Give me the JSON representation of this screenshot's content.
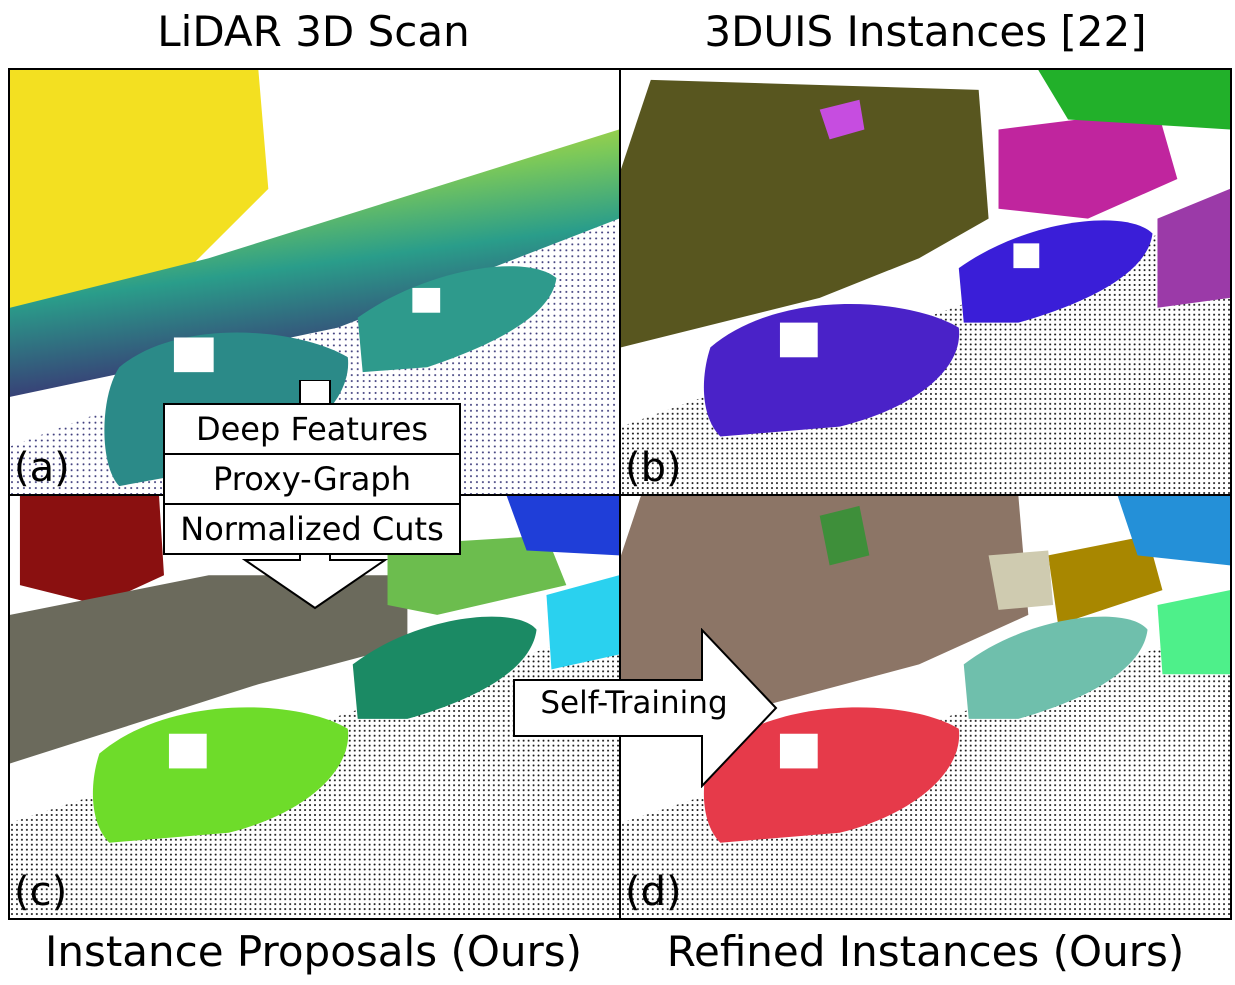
{
  "titles": {
    "a": "LiDAR 3D Scan",
    "b": "3DUIS Instances [22]",
    "c": "Instance Proposals (Ours)",
    "d": "Refined Instances (Ours)"
  },
  "panel_labels": {
    "a": "(a)",
    "b": "(b)",
    "c": "(c)",
    "d": "(d)"
  },
  "pipeline": {
    "steps": [
      "Deep Features",
      "Proxy-Graph",
      "Normalized Cuts"
    ]
  },
  "self_training": {
    "label": "Self-Training"
  },
  "colors": {
    "scan_near": "#3b2a72",
    "scan_mid": "#2a9d8a",
    "scan_far": "#f5e61e",
    "ground_points": "#111111",
    "b_building": "#58561f",
    "b_car": "#4a22c8",
    "b_car2": "#c0259e",
    "c_building": "#6b6a5c",
    "c_car_near": "#6edc2a",
    "c_car_mid": "#1b8a64",
    "c_far": "#8a1010",
    "d_building": "#8c7566",
    "d_car_near": "#e63a4a",
    "d_car_mid": "#6fbfac",
    "d_car_far": "#a88700"
  }
}
